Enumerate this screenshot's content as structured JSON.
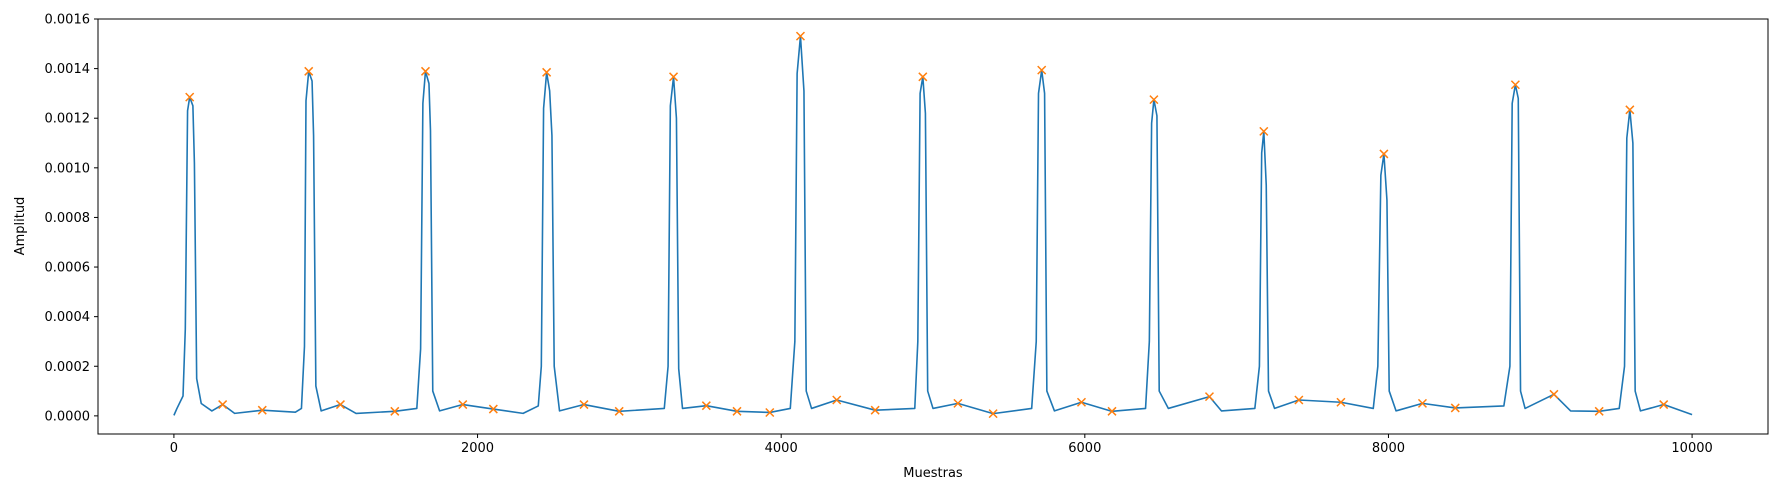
{
  "chart_data": {
    "type": "line",
    "x_label": "Muestras",
    "y_label": "Amplitud",
    "xlim": [
      -500,
      10500
    ],
    "ylim": [
      -7.31e-05,
      0.0016
    ],
    "xticks": [
      0,
      2000,
      4000,
      6000,
      8000,
      10000
    ],
    "yticks": [
      {
        "value": 0,
        "label": "0.0000"
      },
      0.0002,
      0.0004,
      0.0006,
      0.0008,
      {
        "value": 0.001,
        "label": "0.0010"
      },
      0.0012,
      0.0014,
      0.0016
    ],
    "grid": false,
    "series": [
      {
        "color": "#1f77b4",
        "style": "line",
        "x": [
          0,
          20,
          60,
          75,
          90,
          104,
          125,
          135,
          150,
          180,
          250,
          321,
          400,
          582,
          800,
          840,
          860,
          870,
          888,
          910,
          920,
          935,
          970,
          1097,
          1200,
          1455,
          1600,
          1625,
          1640,
          1657,
          1680,
          1690,
          1705,
          1750,
          1903,
          2104,
          2300,
          2400,
          2420,
          2435,
          2455,
          2475,
          2490,
          2505,
          2540,
          2701,
          2933,
          3230,
          3255,
          3270,
          3291,
          3310,
          3325,
          3350,
          3507,
          3709,
          3925,
          4060,
          4090,
          4105,
          4127,
          4150,
          4165,
          4200,
          4366,
          4619,
          4880,
          4900,
          4915,
          4933,
          4950,
          4965,
          5000,
          5164,
          5396,
          5650,
          5680,
          5695,
          5716,
          5735,
          5750,
          5800,
          5978,
          6179,
          6400,
          6425,
          6440,
          6455,
          6475,
          6490,
          6550,
          6821,
          6900,
          7120,
          7150,
          7165,
          7179,
          7195,
          7210,
          7250,
          7410,
          7687,
          7900,
          7930,
          7950,
          7970,
          7990,
          8005,
          8050,
          8224,
          8440,
          8760,
          8800,
          8815,
          8836,
          8855,
          8870,
          8900,
          9090,
          9200,
          9388,
          9520,
          9555,
          9570,
          9590,
          9610,
          9625,
          9660,
          9813,
          10000
        ],
        "values": [
          2e-06,
          3e-05,
          8e-05,
          0.00035,
          0.00123,
          0.001285,
          0.00125,
          0.00102,
          0.00015,
          5e-05,
          2e-05,
          4.57e-05,
          1e-05,
          2.29e-05,
          1.5e-05,
          3e-05,
          0.00028,
          0.00127,
          0.001389,
          0.00135,
          0.00113,
          0.00012,
          2e-05,
          4.57e-05,
          1e-05,
          1.83e-05,
          3e-05,
          0.00027,
          0.00126,
          0.001389,
          0.00134,
          0.00115,
          0.0001,
          2e-05,
          4.57e-05,
          2.74e-05,
          1e-05,
          4e-05,
          0.0002,
          0.00124,
          0.001385,
          0.00131,
          0.00113,
          0.0002,
          2e-05,
          4.57e-05,
          1.83e-05,
          3e-05,
          0.0002,
          0.00125,
          0.001367,
          0.0012,
          0.00019,
          3e-05,
          4.11e-05,
          1.83e-05,
          1.37e-05,
          3e-05,
          0.0003,
          0.00138,
          0.001531,
          0.00131,
          0.0001,
          3e-05,
          6.4e-05,
          2.29e-05,
          3e-05,
          0.0003,
          0.0013,
          0.001367,
          0.00122,
          0.0001,
          3e-05,
          5.03e-05,
          9.1e-06,
          3e-05,
          0.0003,
          0.0013,
          0.001394,
          0.0013,
          0.0001,
          2e-05,
          5.49e-05,
          1.83e-05,
          3e-05,
          0.0003,
          0.00118,
          0.001275,
          0.00121,
          0.0001,
          3e-05,
          7.77e-05,
          2e-05,
          3e-05,
          0.0002,
          0.00106,
          0.001147,
          0.00093,
          0.0001,
          3e-05,
          6.4e-05,
          5.49e-05,
          3e-05,
          0.0002,
          0.00097,
          0.001056,
          0.00087,
          0.0001,
          2e-05,
          5.03e-05,
          3.2e-05,
          4e-05,
          0.0002,
          0.00126,
          0.001335,
          0.00128,
          0.0001,
          3e-05,
          8.69e-05,
          2e-05,
          1.83e-05,
          3e-05,
          0.0002,
          0.00112,
          0.001234,
          0.0011,
          0.0001,
          2e-05,
          4.57e-05,
          5e-06
        ]
      },
      {
        "color": "#ff7f0e",
        "style": "marker",
        "x": [
          104,
          321,
          582,
          888,
          1097,
          1455,
          1657,
          1903,
          2104,
          2455,
          2701,
          2933,
          3291,
          3507,
          3709,
          3925,
          4127,
          4366,
          4619,
          4933,
          5164,
          5396,
          5716,
          5978,
          6179,
          6455,
          6821,
          7179,
          7410,
          7687,
          7970,
          8224,
          8440,
          8836,
          9090,
          9388,
          9590,
          9813
        ],
        "values": [
          0.001285,
          4.57e-05,
          2.29e-05,
          0.001389,
          4.57e-05,
          1.83e-05,
          0.001389,
          4.57e-05,
          2.74e-05,
          0.001385,
          4.57e-05,
          1.83e-05,
          0.001367,
          4.11e-05,
          1.83e-05,
          1.37e-05,
          0.001531,
          6.4e-05,
          2.29e-05,
          0.001367,
          5.03e-05,
          9.1e-06,
          0.001394,
          5.49e-05,
          1.83e-05,
          0.001275,
          7.77e-05,
          0.001147,
          6.4e-05,
          5.49e-05,
          0.001056,
          5.03e-05,
          3.2e-05,
          0.001335,
          8.69e-05,
          1.83e-05,
          0.001234,
          4.57e-05
        ]
      }
    ]
  }
}
